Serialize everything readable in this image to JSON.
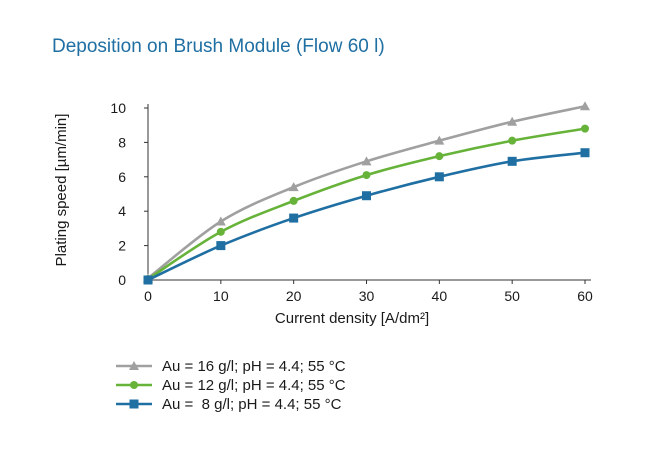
{
  "chart_data": {
    "type": "line",
    "title": "Deposition on Brush Module (Flow 60 l)",
    "xlabel": "Current density [A/dm²]",
    "ylabel": "Plating speed [µm/min]",
    "xlim": [
      0,
      60
    ],
    "ylim": [
      0,
      10
    ],
    "x_ticks": [
      "0",
      "10",
      "20",
      "30",
      "40",
      "50",
      "60"
    ],
    "y_ticks": [
      "0",
      "2",
      "4",
      "6",
      "8",
      "10"
    ],
    "grid": false,
    "legend_position": "bottom-left",
    "x": [
      0,
      10,
      20,
      30,
      40,
      50,
      60
    ],
    "series": [
      {
        "name": "Au = 16 g/l; pH = 4.4; 55 °C",
        "marker": "triangle",
        "color": "#a0a0a0",
        "values": [
          0.1,
          3.4,
          5.4,
          6.9,
          8.1,
          9.2,
          10.1
        ]
      },
      {
        "name": "Au = 12 g/l; pH = 4.4; 55 °C",
        "marker": "circle",
        "color": "#67b33a",
        "values": [
          0.05,
          2.8,
          4.6,
          6.1,
          7.2,
          8.1,
          8.8
        ]
      },
      {
        "name": "Au =  8 g/l; pH = 4.4; 55 °C",
        "marker": "square",
        "color": "#1f6fa3",
        "values": [
          0.0,
          2.0,
          3.6,
          4.9,
          6.0,
          6.9,
          7.4
        ]
      }
    ]
  }
}
